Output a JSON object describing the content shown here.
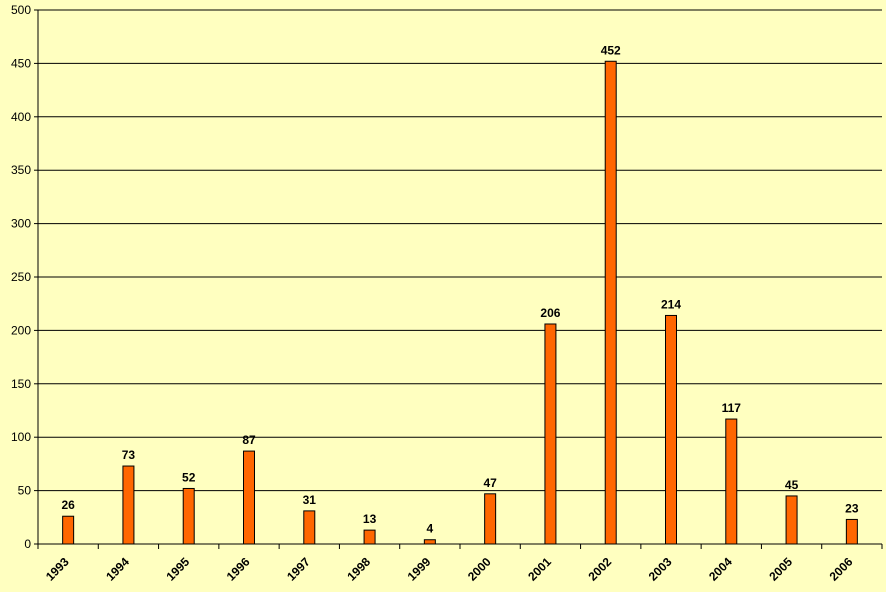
{
  "chart_data": {
    "type": "bar",
    "categories": [
      "1993",
      "1994",
      "1995",
      "1996",
      "1997",
      "1998",
      "1999",
      "2000",
      "2001",
      "2002",
      "2003",
      "2004",
      "2005",
      "2006"
    ],
    "values": [
      26,
      73,
      52,
      87,
      31,
      13,
      4,
      47,
      206,
      452,
      214,
      117,
      45,
      23
    ],
    "title": "",
    "xlabel": "",
    "ylabel": "",
    "ylim": [
      0,
      500
    ],
    "yticks": [
      0,
      50,
      100,
      150,
      200,
      250,
      300,
      350,
      400,
      450,
      500
    ],
    "grid": true,
    "legend": "none",
    "colors": {
      "bar": "#ff6600",
      "bar_stroke": "#000000",
      "background": "#ffffc0",
      "grid": "#000000"
    }
  }
}
